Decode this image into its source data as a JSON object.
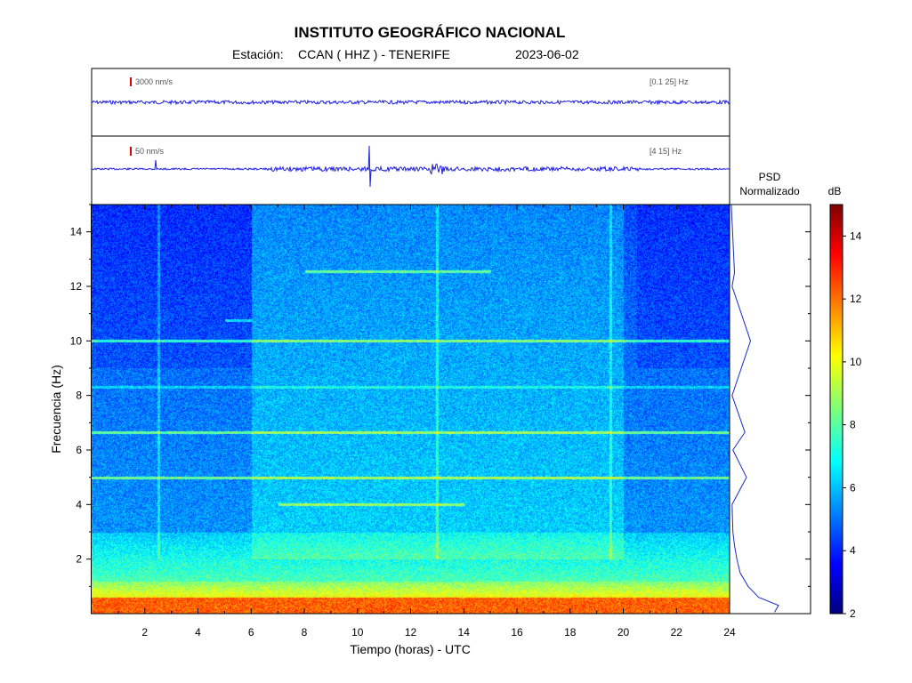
{
  "header": {
    "title": "INSTITUTO GEOGRÁFICO NACIONAL",
    "station_label": "Estación:",
    "station": "CCAN ( HHZ ) - TENERIFE",
    "date": "2023-06-02"
  },
  "traces": [
    {
      "scale": "3000 nm/s",
      "band": "[0.1 25] Hz"
    },
    {
      "scale": "50 nm/s",
      "band": "[4 15] Hz"
    }
  ],
  "psd": {
    "line1": "PSD",
    "line2": "Normalizado"
  },
  "colorbar": {
    "unit": "dB",
    "ticks": [
      "2",
      "4",
      "6",
      "8",
      "10",
      "12",
      "14"
    ],
    "range": [
      2,
      15
    ]
  },
  "colors": {
    "trace": "#1f1fe0",
    "scale_bar": "#e00000",
    "psd_line": "#1a2cc0"
  },
  "chart_data": {
    "type": "heatmap",
    "title": "INSTITUTO GEOGRÁFICO NACIONAL",
    "xlabel": "Tiempo (horas) - UTC",
    "ylabel": "Frecuencia  (Hz)",
    "xlim": [
      0,
      24
    ],
    "ylim": [
      0,
      15
    ],
    "x_ticks": [
      "2",
      "4",
      "6",
      "8",
      "10",
      "12",
      "14",
      "16",
      "18",
      "20",
      "22",
      "24"
    ],
    "y_ticks": [
      "2",
      "4",
      "6",
      "8",
      "10",
      "12",
      "14"
    ],
    "colorscale_db": [
      2,
      15
    ],
    "harmonic_lines_hz": [
      10,
      8.3,
      6.65,
      5,
      4,
      12.55,
      10.75
    ],
    "psd_normalized": {
      "freq_hz": [
        0.05,
        0.3,
        0.6,
        1,
        1.5,
        2,
        2.5,
        3,
        4,
        5,
        6,
        6.65,
        8,
        10,
        12,
        12.5,
        15
      ],
      "value": [
        0.55,
        0.6,
        0.35,
        0.22,
        0.12,
        0.08,
        0.05,
        0.03,
        0.02,
        0.2,
        0.03,
        0.18,
        0.02,
        0.25,
        0.02,
        0.05,
        0.01
      ]
    }
  }
}
